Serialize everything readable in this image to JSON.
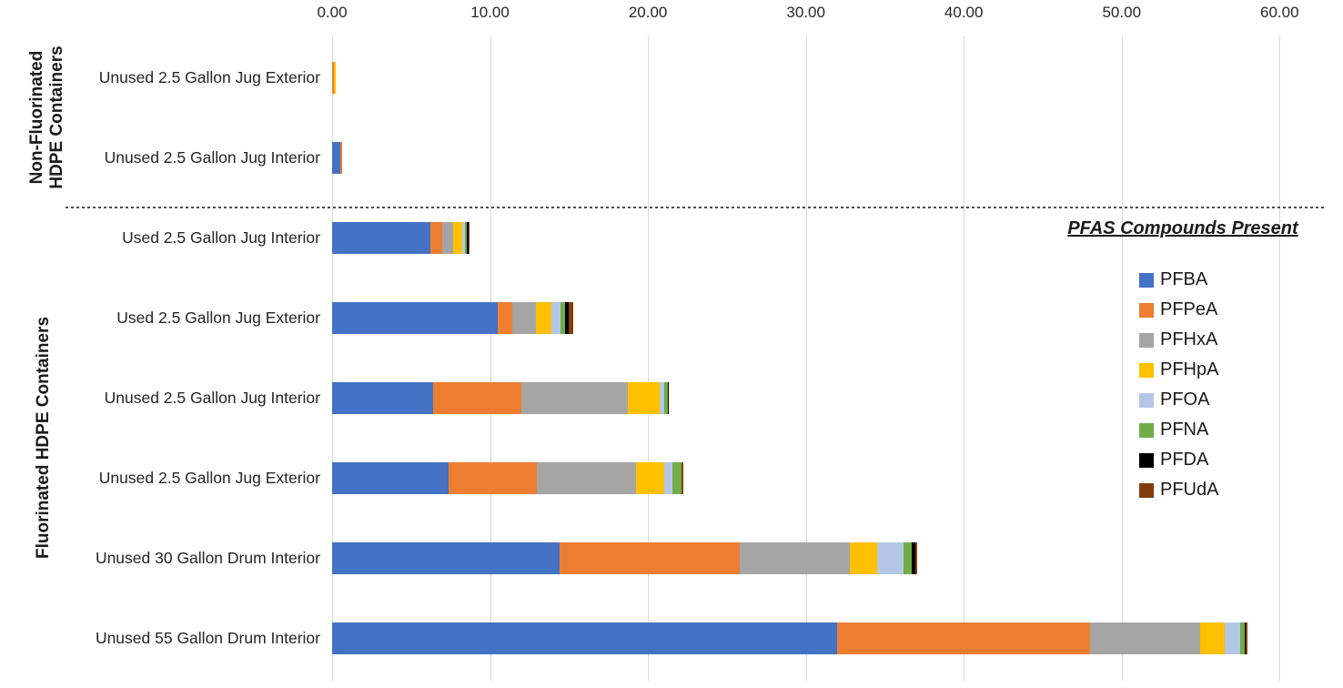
{
  "chart_data": {
    "type": "bar",
    "orientation": "horizontal",
    "stacked": true,
    "title": "",
    "xlabel": "",
    "ylabel": "",
    "xlim": [
      0,
      60
    ],
    "x_ticks": [
      "0.00",
      "10.00",
      "20.00",
      "30.00",
      "40.00",
      "50.00",
      "60.00"
    ],
    "x_tick_values": [
      0,
      10,
      20,
      30,
      40,
      50,
      60
    ],
    "grid": true,
    "legend_position": "right",
    "legend_title": "PFAS Compounds Present",
    "categories": [
      "Unused 2.5 Gallon Jug Exterior",
      "Unused 2.5 Gallon Jug Interior",
      "Used 2.5 Gallon Jug Interior",
      "Used 2.5 Gallon Jug Exterior",
      "Unused 2.5 Gallon Jug Interior",
      "Unused 2.5 Gallon Jug Exterior",
      "Unused 30 Gallon Drum Interior",
      "Unused 55 Gallon Drum Interior"
    ],
    "groups": [
      {
        "label": "Non-Fluorinated\nHDPE Containers",
        "row_start": 0,
        "row_end": 1
      },
      {
        "label": "Fluorinated HDPE Containers",
        "row_start": 2,
        "row_end": 7
      }
    ],
    "series": [
      {
        "name": "PFBA",
        "color": "#4472C4",
        "values": [
          0,
          0.5,
          6.2,
          10.5,
          6.4,
          7.4,
          14.4,
          32.0
        ]
      },
      {
        "name": "PFPeA",
        "color": "#ED7D31",
        "values": [
          0.12,
          0.15,
          0.77,
          0.92,
          5.57,
          5.57,
          11.43,
          16.0
        ]
      },
      {
        "name": "PFHxA",
        "color": "#A5A5A5",
        "values": [
          0,
          0,
          0.67,
          1.5,
          6.73,
          6.28,
          6.97,
          6.95
        ]
      },
      {
        "name": "PFHpA",
        "color": "#FFC000",
        "values": [
          0.13,
          0,
          0.6,
          0.96,
          2.05,
          1.79,
          1.74,
          1.6
        ]
      },
      {
        "name": "PFOA",
        "color": "#B4C7E7",
        "values": [
          0,
          0,
          0.2,
          0.58,
          0.28,
          0.52,
          1.64,
          0.95
        ]
      },
      {
        "name": "PFNA",
        "color": "#70AD47",
        "values": [
          0,
          0,
          0.1,
          0.27,
          0.25,
          0.58,
          0.55,
          0.27
        ]
      },
      {
        "name": "PFDA",
        "color": "#000000",
        "values": [
          0,
          0,
          0.08,
          0.25,
          0.05,
          0,
          0.2,
          0.1
        ]
      },
      {
        "name": "PFUdA",
        "color": "#843C0C",
        "values": [
          0,
          0,
          0.05,
          0.29,
          0,
          0.08,
          0.11,
          0.08
        ]
      }
    ]
  }
}
